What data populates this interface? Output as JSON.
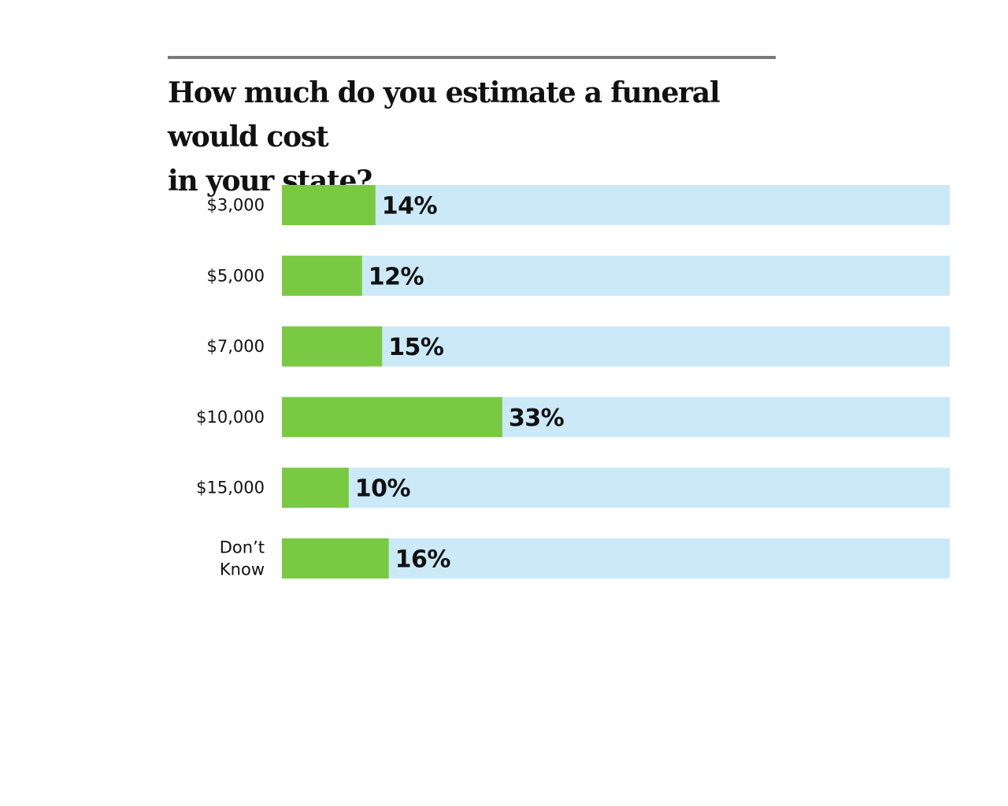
{
  "chart_data": {
    "type": "bar",
    "orientation": "horizontal",
    "title": "How much do you estimate a funeral would cost in your state?",
    "title_lines": [
      "How much do you estimate a funeral would cost",
      "in your state?"
    ],
    "categories": [
      [
        "$3,000"
      ],
      [
        "$5,000"
      ],
      [
        "$7,000"
      ],
      [
        "$10,000"
      ],
      [
        "$15,000"
      ],
      [
        "Don’t",
        "Know"
      ]
    ],
    "values": [
      14,
      12,
      15,
      33,
      10,
      16
    ],
    "value_labels": [
      "14%",
      "12%",
      "15%",
      "33%",
      "10%",
      "16%"
    ],
    "value_max": 100,
    "colors": {
      "bar": "#7ac943",
      "track": "#cce9f8",
      "rule": "#7a7a7a",
      "text": "#111111"
    },
    "grid": false,
    "legend": "none"
  }
}
